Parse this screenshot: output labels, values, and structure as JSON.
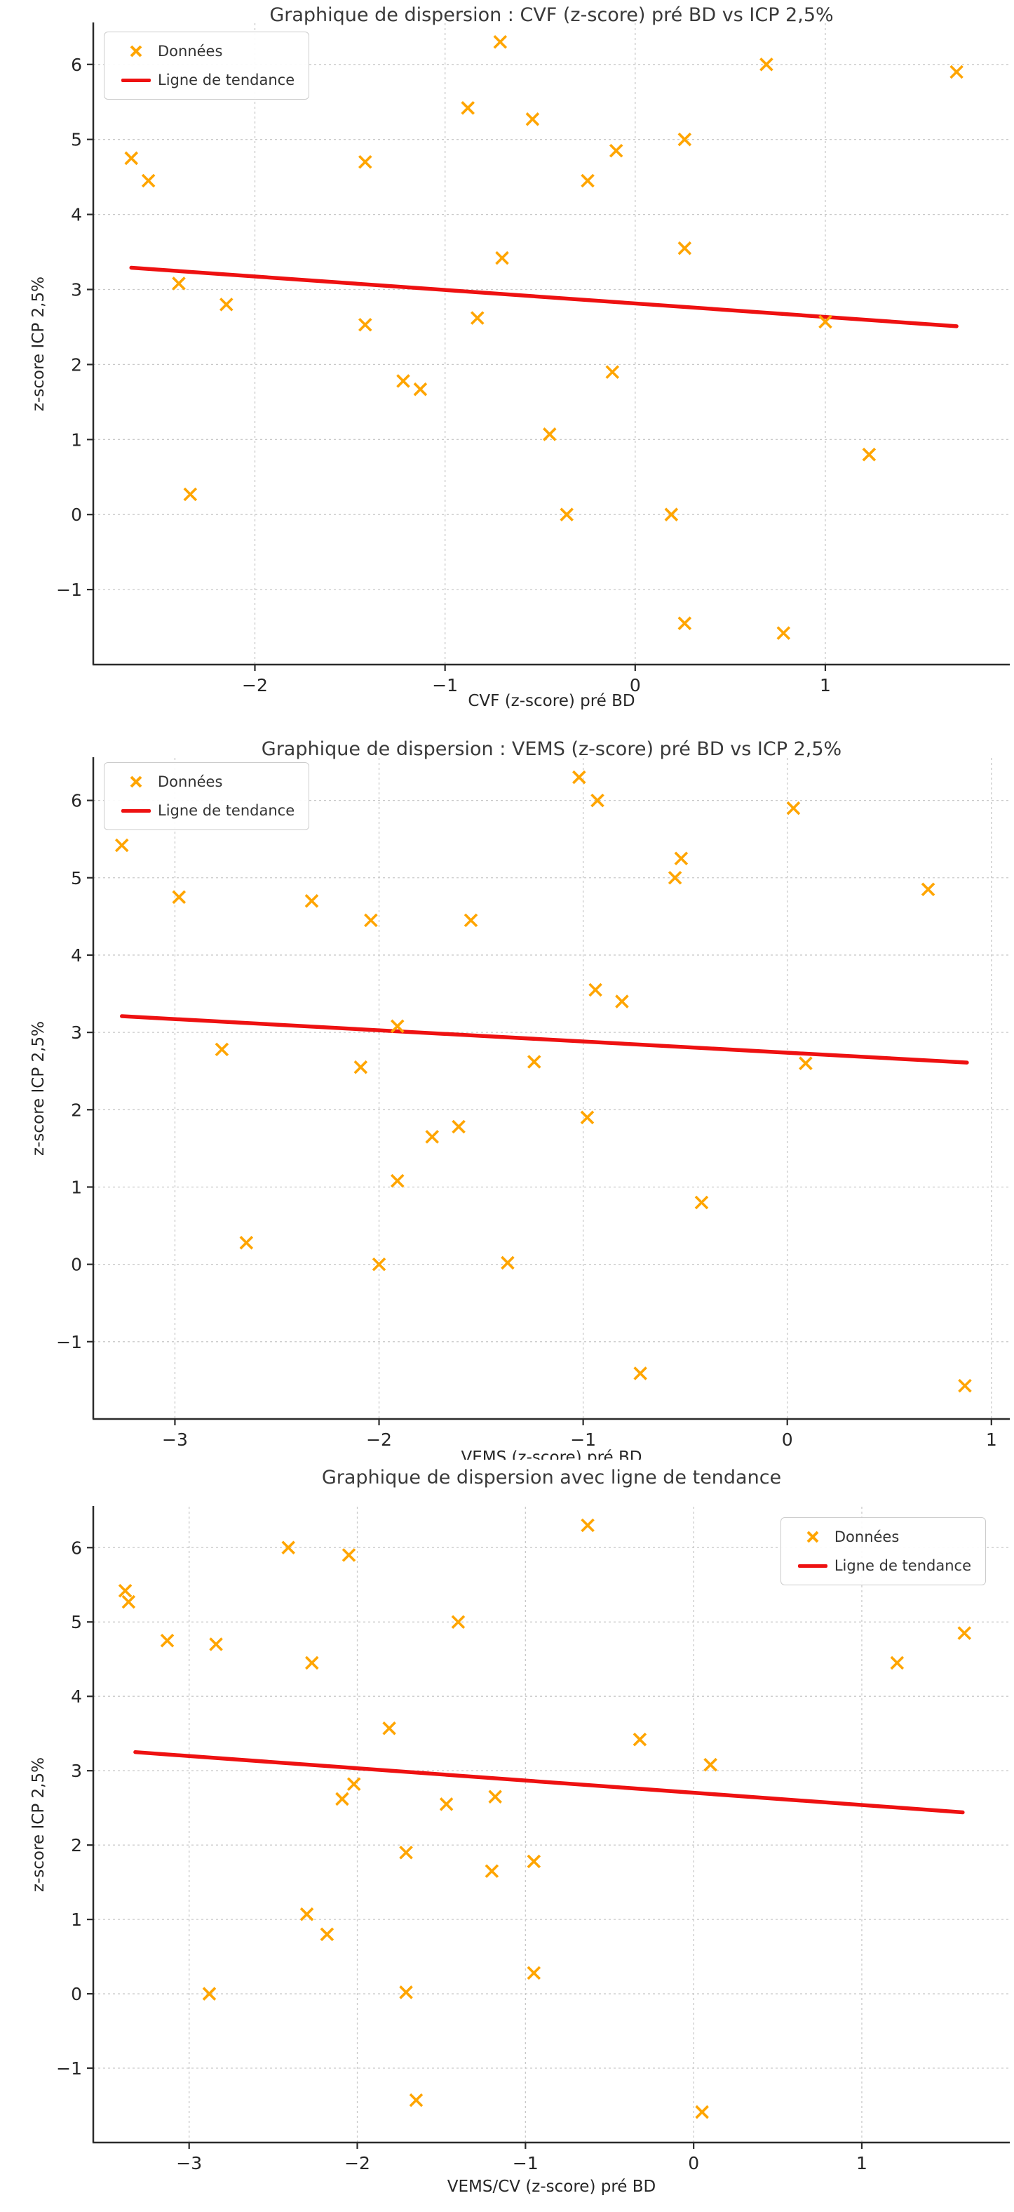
{
  "figure": {
    "background": "#ffffff",
    "n_charts": 3
  },
  "colors": {
    "marker": "#FFA500",
    "trend": "#EE1111",
    "title_text": "#3a3a3a",
    "tick_text": "#262626",
    "grid": "#c9c9c9",
    "spine": "#2b2b2b"
  },
  "chart_data": [
    {
      "type": "scatter",
      "title": "Graphique de dispersion : CVF (z-score) pré BD vs ICP 2,5%",
      "xlabel": "CVF (z-score) pré BD",
      "ylabel": "z-score ICP 2,5%",
      "series_label": "Données",
      "trend_label": "Ligne de tendance",
      "legend_position": "top-left",
      "grid": true,
      "marker": "x",
      "xlim": [
        -2.85,
        1.97
      ],
      "ylim": [
        -2.0,
        6.55
      ],
      "xticks": [
        -2,
        -1,
        0,
        1
      ],
      "xtick_labels": [
        "−2",
        "−1",
        "0",
        "1"
      ],
      "yticks": [
        -1,
        0,
        1,
        2,
        3,
        4,
        5,
        6
      ],
      "ytick_labels": [
        "−1",
        "0",
        "1",
        "2",
        "3",
        "4",
        "5",
        "6"
      ],
      "points": [
        [
          -2.65,
          4.75
        ],
        [
          -2.56,
          4.45
        ],
        [
          -2.4,
          3.08
        ],
        [
          -2.34,
          0.27
        ],
        [
          -2.15,
          2.8
        ],
        [
          -1.42,
          4.7
        ],
        [
          -1.42,
          2.53
        ],
        [
          -1.22,
          1.78
        ],
        [
          -1.13,
          1.67
        ],
        [
          -0.88,
          5.42
        ],
        [
          -0.83,
          2.62
        ],
        [
          -0.71,
          6.3
        ],
        [
          -0.7,
          3.42
        ],
        [
          -0.54,
          5.27
        ],
        [
          -0.45,
          1.07
        ],
        [
          -0.36,
          0.0
        ],
        [
          -0.25,
          4.45
        ],
        [
          -0.12,
          1.9
        ],
        [
          -0.1,
          4.85
        ],
        [
          0.19,
          0.0
        ],
        [
          0.26,
          5.0
        ],
        [
          0.26,
          3.55
        ],
        [
          0.26,
          -1.45
        ],
        [
          0.69,
          6.0
        ],
        [
          0.78,
          -1.58
        ],
        [
          1.0,
          2.57
        ],
        [
          1.23,
          0.8
        ],
        [
          1.69,
          5.9
        ]
      ],
      "trend": {
        "x1": -2.65,
        "y1": 3.29,
        "x2": 1.69,
        "y2": 2.51
      }
    },
    {
      "type": "scatter",
      "title": "Graphique de dispersion : VEMS (z-score) pré BD vs ICP 2,5%",
      "xlabel": "VEMS (z-score) pré BD",
      "ylabel": "z-score ICP 2,5%",
      "series_label": "Données",
      "trend_label": "Ligne de tendance",
      "legend_position": "top-left",
      "grid": true,
      "marker": "x",
      "xlim": [
        -3.4,
        1.09
      ],
      "ylim": [
        -2.0,
        6.55
      ],
      "xticks": [
        -3,
        -2,
        -1,
        0,
        1
      ],
      "xtick_labels": [
        "−3",
        "−2",
        "−1",
        "0",
        "1"
      ],
      "yticks": [
        -1,
        0,
        1,
        2,
        3,
        4,
        5,
        6
      ],
      "ytick_labels": [
        "−1",
        "0",
        "1",
        "2",
        "3",
        "4",
        "5",
        "6"
      ],
      "points": [
        [
          -3.26,
          5.42
        ],
        [
          -2.98,
          4.75
        ],
        [
          -2.77,
          2.78
        ],
        [
          -2.65,
          0.28
        ],
        [
          -2.33,
          4.7
        ],
        [
          -2.09,
          2.55
        ],
        [
          -2.04,
          4.45
        ],
        [
          -2.0,
          0.0
        ],
        [
          -1.91,
          3.08
        ],
        [
          -1.91,
          1.08
        ],
        [
          -1.74,
          1.65
        ],
        [
          -1.61,
          1.78
        ],
        [
          -1.55,
          4.45
        ],
        [
          -1.37,
          0.02
        ],
        [
          -1.24,
          2.62
        ],
        [
          -1.02,
          6.3
        ],
        [
          -0.98,
          1.9
        ],
        [
          -0.94,
          3.55
        ],
        [
          -0.93,
          6.0
        ],
        [
          -0.81,
          3.4
        ],
        [
          -0.72,
          -1.41
        ],
        [
          -0.55,
          5.0
        ],
        [
          -0.52,
          5.25
        ],
        [
          -0.42,
          0.8
        ],
        [
          0.03,
          5.9
        ],
        [
          0.09,
          2.6
        ],
        [
          0.69,
          4.85
        ],
        [
          0.87,
          -1.57
        ]
      ],
      "trend": {
        "x1": -3.26,
        "y1": 3.21,
        "x2": 0.88,
        "y2": 2.61
      }
    },
    {
      "type": "scatter",
      "title": "Graphique de dispersion avec ligne de tendance",
      "xlabel": "VEMS/CV (z-score) pré BD",
      "ylabel": "z-score ICP 2,5%",
      "series_label": "Données",
      "trend_label": "Ligne de tendance",
      "legend_position": "top-right",
      "grid": true,
      "marker": "x",
      "xlim": [
        -3.57,
        1.88
      ],
      "ylim": [
        -2.0,
        6.55
      ],
      "xticks": [
        -3,
        -2,
        -1,
        0,
        1
      ],
      "xtick_labels": [
        "−3",
        "−2",
        "−1",
        "0",
        "1"
      ],
      "yticks": [
        -1,
        0,
        1,
        2,
        3,
        4,
        5,
        6
      ],
      "ytick_labels": [
        "−1",
        "0",
        "1",
        "2",
        "3",
        "4",
        "5",
        "6"
      ],
      "points": [
        [
          -3.38,
          5.42
        ],
        [
          -3.36,
          5.27
        ],
        [
          -3.13,
          4.75
        ],
        [
          -2.88,
          0.0
        ],
        [
          -2.84,
          4.7
        ],
        [
          -2.41,
          6.0
        ],
        [
          -2.3,
          1.07
        ],
        [
          -2.27,
          4.45
        ],
        [
          -2.18,
          0.8
        ],
        [
          -2.09,
          2.62
        ],
        [
          -2.05,
          5.9
        ],
        [
          -2.02,
          2.82
        ],
        [
          -1.81,
          3.57
        ],
        [
          -1.71,
          1.9
        ],
        [
          -1.71,
          0.02
        ],
        [
          -1.65,
          -1.43
        ],
        [
          -1.47,
          2.55
        ],
        [
          -1.4,
          5.0
        ],
        [
          -1.2,
          1.65
        ],
        [
          -1.18,
          2.65
        ],
        [
          -0.95,
          1.78
        ],
        [
          -0.95,
          0.28
        ],
        [
          -0.63,
          6.3
        ],
        [
          -0.32,
          3.42
        ],
        [
          0.05,
          -1.59
        ],
        [
          0.1,
          3.08
        ],
        [
          1.21,
          4.45
        ],
        [
          1.61,
          4.85
        ]
      ],
      "trend": {
        "x1": -3.32,
        "y1": 3.25,
        "x2": 1.6,
        "y2": 2.44
      }
    }
  ]
}
